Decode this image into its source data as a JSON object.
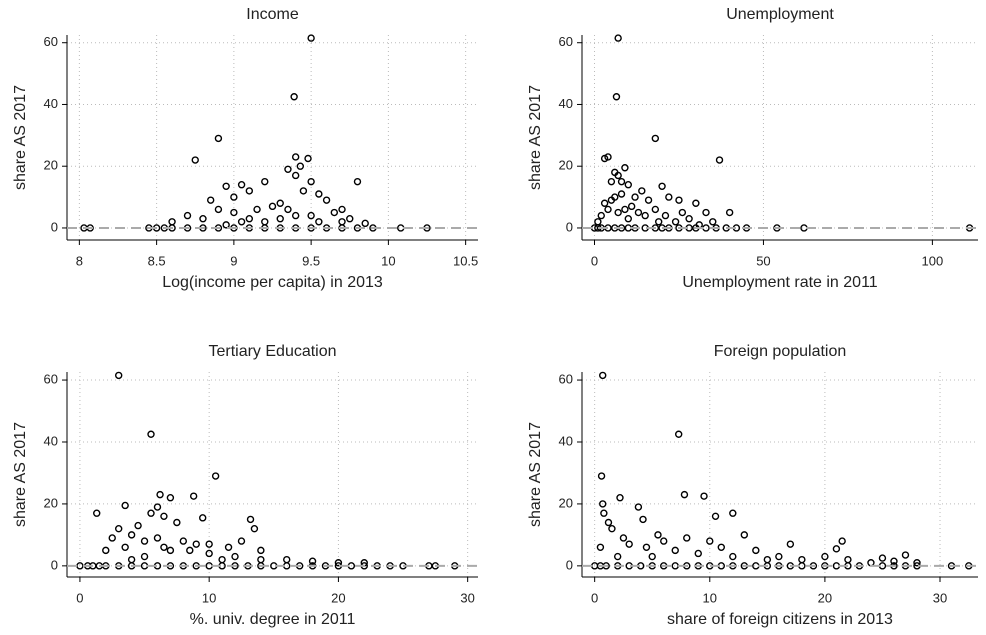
{
  "chart_data": [
    {
      "type": "scatter",
      "title": "Income",
      "x_label": "Log(income per capita) in 2013",
      "y_label": "share AS 2017",
      "x": [
        9.5,
        9.39,
        8.9,
        9.4,
        8.75,
        9.48,
        9.35,
        9.4,
        9.43,
        9.5,
        9.8,
        9.2,
        9.05,
        8.95,
        9.0,
        9.1,
        9.55,
        9.6,
        9.3,
        9.7,
        9.45,
        8.85,
        9.25,
        9.15,
        9.65,
        8.9,
        8.7,
        9.0,
        9.35,
        9.5,
        9.75,
        8.6,
        8.8,
        9.1,
        9.2,
        9.3,
        9.4,
        9.55,
        9.7,
        9.85,
        9.05,
        8.95,
        8.03,
        8.07,
        8.45,
        8.5,
        8.55,
        8.6,
        8.7,
        8.8,
        8.9,
        9.0,
        9.1,
        9.2,
        9.3,
        9.4,
        9.5,
        9.6,
        9.7,
        9.8,
        9.9,
        10.08,
        10.25
      ],
      "values": [
        61.5,
        42.5,
        29,
        23,
        22,
        22.5,
        19,
        17,
        20,
        15,
        15,
        15,
        14,
        13.5,
        10,
        12,
        11,
        9,
        8,
        6,
        12,
        9,
        7,
        6,
        5,
        6,
        4,
        5,
        6,
        4,
        3,
        2,
        3,
        3,
        2,
        3,
        4,
        2,
        2,
        1.5,
        2,
        1,
        0,
        0,
        0,
        0,
        0,
        0,
        0,
        0,
        0,
        0,
        0,
        0,
        0,
        0,
        0,
        0,
        0,
        0,
        0,
        0,
        0
      ],
      "xlim": [
        7.92,
        10.58
      ],
      "ylim": [
        -3.9,
        62.5
      ],
      "xticks": [
        8,
        8.5,
        9,
        9.5,
        10,
        10.5
      ],
      "yticks": [
        0,
        20,
        40,
        60
      ],
      "grid": true,
      "hline": 0,
      "color": "#000000"
    },
    {
      "type": "scatter",
      "title": "Unemployment",
      "x_label": "Unemployment rate in 2011",
      "y_label": "share AS 2017",
      "x": [
        7,
        6.5,
        18,
        3,
        4,
        37,
        6,
        7,
        5,
        8,
        9,
        10,
        14,
        20,
        22,
        25,
        30,
        12,
        16,
        8,
        11,
        18,
        26,
        33,
        40,
        3,
        5,
        6,
        4,
        2,
        13,
        15,
        21,
        28,
        35,
        7,
        9,
        1,
        10,
        19,
        24,
        31,
        0,
        1,
        2,
        4,
        6,
        8,
        10,
        12,
        15,
        18,
        20,
        22,
        25,
        28,
        30,
        33,
        36,
        39,
        42,
        45,
        54,
        62,
        111
      ],
      "values": [
        61.5,
        42.5,
        29,
        22.5,
        23,
        22,
        18,
        17,
        15,
        15,
        19.5,
        14,
        12,
        13.5,
        10,
        9,
        8,
        10,
        9,
        11,
        7,
        6,
        5,
        5,
        5,
        8,
        9,
        10,
        6,
        4,
        5,
        4,
        4,
        3,
        2,
        5,
        6,
        2,
        3,
        2,
        2,
        1,
        0,
        0,
        0,
        0,
        0,
        0,
        0,
        0,
        0,
        0,
        0,
        0,
        0,
        0,
        0,
        0,
        0,
        0,
        0,
        0,
        0,
        0,
        0
      ],
      "xlim": [
        -3.7,
        113.5
      ],
      "ylim": [
        -3.9,
        62.5
      ],
      "xticks": [
        0,
        50,
        100
      ],
      "yticks": [
        0,
        20,
        40,
        60
      ],
      "grid": true,
      "hline": 0,
      "color": "#000000"
    },
    {
      "type": "scatter",
      "title": "Tertiary Education",
      "x_label": "%. univ. degree in 2011",
      "y_label": "share AS 2017",
      "x": [
        3,
        5.5,
        10.5,
        6.2,
        7,
        8.8,
        6,
        3.5,
        1.3,
        5.5,
        6.5,
        9.5,
        13.2,
        7.5,
        4.5,
        13.5,
        3,
        2.5,
        4,
        5,
        6,
        8,
        9,
        10,
        11.5,
        12.5,
        14,
        7,
        2,
        3.5,
        6.5,
        8.5,
        10,
        12,
        14,
        16,
        18,
        20,
        22,
        5,
        4,
        11,
        0,
        0.6,
        1,
        1.5,
        2,
        3,
        4,
        5,
        6,
        7,
        8,
        9,
        10,
        11,
        12,
        13,
        14,
        15,
        16,
        17,
        18,
        19,
        20,
        21,
        22,
        23,
        24,
        25,
        27,
        27.5,
        29
      ],
      "values": [
        61.5,
        42.5,
        29,
        23,
        22,
        22.5,
        19,
        19.5,
        17,
        17,
        16,
        15.5,
        15,
        14,
        13,
        12,
        12,
        9,
        10,
        8,
        9,
        8,
        7,
        7,
        6,
        8,
        5,
        5,
        5,
        6,
        6,
        5,
        4,
        3,
        2,
        2,
        1.5,
        1,
        1,
        3,
        2,
        2,
        0,
        0,
        0,
        0,
        0,
        0,
        0,
        0,
        0,
        0,
        0,
        0,
        0,
        0,
        0,
        0,
        0,
        0,
        0,
        0,
        0,
        0,
        0,
        0,
        0,
        0,
        0,
        0,
        0,
        0,
        0
      ],
      "xlim": [
        -1,
        30.8
      ],
      "ylim": [
        -3.6,
        62.6
      ],
      "xticks": [
        0,
        10,
        20,
        30
      ],
      "yticks": [
        0,
        20,
        40,
        60
      ],
      "grid": true,
      "hline": 0,
      "color": "#000000"
    },
    {
      "type": "scatter",
      "title": "Foreign population",
      "x_label": "share of foreign citizens in 2013",
      "y_label": "share AS 2017",
      "x": [
        0.7,
        7.3,
        0.6,
        2.2,
        7.8,
        9.5,
        0.7,
        3.8,
        0.8,
        10.5,
        12,
        1.2,
        4.2,
        1.5,
        5.5,
        8,
        13,
        2.5,
        6,
        10,
        0.5,
        3,
        4.5,
        7,
        11,
        14,
        16,
        17,
        21.5,
        21,
        20,
        25,
        27,
        18,
        2,
        5,
        9,
        12,
        15,
        22,
        24,
        26,
        28,
        0,
        0.5,
        1,
        2,
        3,
        4,
        5,
        6,
        7,
        8,
        9,
        10,
        11,
        12,
        13,
        14,
        15,
        16,
        17,
        18,
        19,
        20,
        21,
        22,
        23,
        25,
        26,
        27,
        28,
        31,
        32.5
      ],
      "values": [
        61.5,
        42.5,
        29,
        22,
        23,
        22.5,
        20,
        19,
        17,
        16,
        17,
        14,
        15,
        12,
        10,
        9,
        10,
        9,
        8,
        8,
        6,
        7,
        6,
        5,
        6,
        5,
        3,
        7,
        8,
        5.5,
        3,
        2.5,
        3.5,
        2,
        3,
        3,
        4,
        3,
        2,
        2,
        1,
        1.5,
        1,
        0,
        0,
        0,
        0,
        0,
        0,
        0,
        0,
        0,
        0,
        0,
        0,
        0,
        0,
        0,
        0,
        0,
        0,
        0,
        0,
        0,
        0,
        0,
        0,
        0,
        0,
        0,
        0,
        0,
        0,
        0
      ],
      "xlim": [
        -1.1,
        33.3
      ],
      "ylim": [
        -3.6,
        62.6
      ],
      "xticks": [
        0,
        10,
        20,
        30
      ],
      "yticks": [
        0,
        20,
        40,
        60
      ],
      "grid": true,
      "hline": 0,
      "color": "#000000"
    }
  ]
}
